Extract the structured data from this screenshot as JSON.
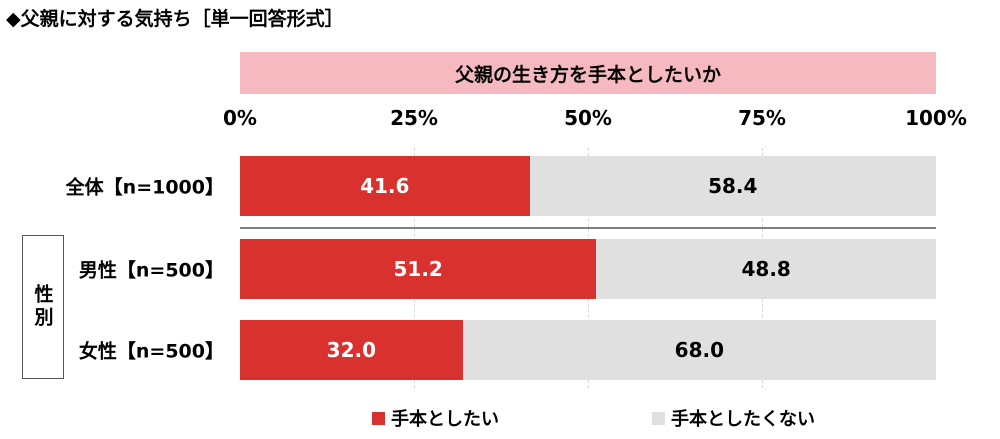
{
  "title": "◆父親に対する気持ち［単一回答形式］",
  "question": "父親の生き方を手本としたいか",
  "colors": {
    "yes": "#d9322e",
    "no": "#e0e0e0",
    "header_bg": "#f7b9c0"
  },
  "group_label": "性別",
  "chart_data": {
    "type": "bar",
    "orientation": "horizontal",
    "stacked": true,
    "xlim": [
      0,
      100
    ],
    "x_ticks": [
      "0%",
      "25%",
      "50%",
      "75%",
      "100%"
    ],
    "categories": [
      "全体【n=1000】",
      "男性【n=500】",
      "女性【n=500】"
    ],
    "series": [
      {
        "name": "手本としたい",
        "values": [
          41.6,
          51.2,
          32.0
        ]
      },
      {
        "name": "手本としたくない",
        "values": [
          58.4,
          48.8,
          68.0
        ]
      }
    ],
    "value_labels": [
      [
        "41.6",
        "51.2",
        "32.0"
      ],
      [
        "58.4",
        "48.8",
        "68.0"
      ]
    ],
    "legend_position": "bottom"
  }
}
